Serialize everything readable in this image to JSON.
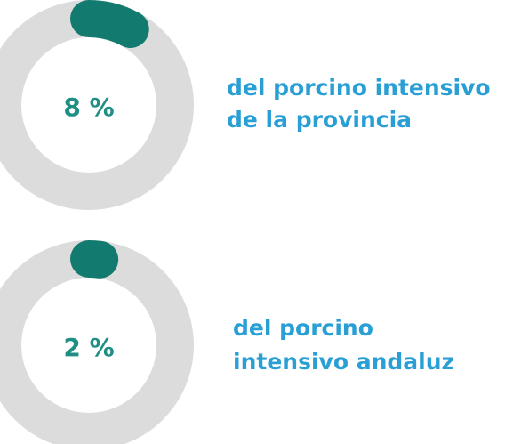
{
  "chart_data": [
    {
      "type": "donut",
      "values": [
        8
      ],
      "value_labels": [
        "8 %"
      ],
      "caption": [
        "del porcino intensivo",
        "de la provincia"
      ],
      "color": "#137a70",
      "track_color": "#dcdcdc",
      "label_color": "#1f8f86",
      "caption_color": "#2a9fd6",
      "ylim": [
        0,
        100
      ]
    },
    {
      "type": "donut",
      "values": [
        2
      ],
      "value_labels": [
        "2 %"
      ],
      "caption": [
        "del porcino",
        "intensivo andaluz"
      ],
      "color": "#137a70",
      "track_color": "#dcdcdc",
      "label_color": "#1f8f86",
      "caption_color": "#2a9fd6",
      "ylim": [
        0,
        100
      ]
    }
  ]
}
